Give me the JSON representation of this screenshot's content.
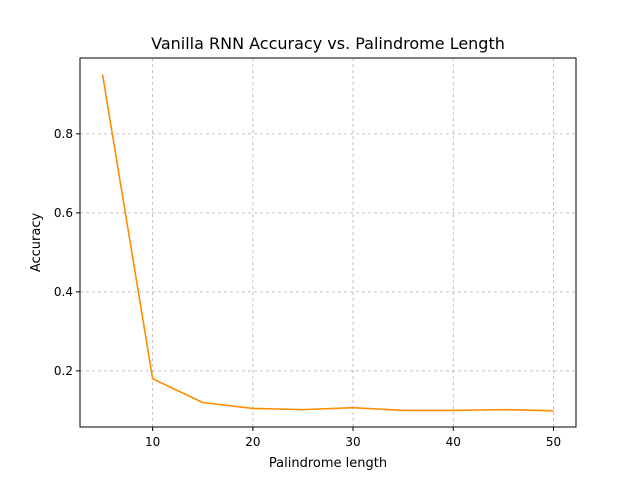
{
  "chart_data": {
    "type": "line",
    "title": "Vanilla RNN Accuracy vs. Palindrome Length",
    "xlabel": "Palindrome length",
    "ylabel": "Accuracy",
    "xlim": [
      2.75,
      52.25
    ],
    "ylim": [
      0.058,
      0.992
    ],
    "xticks": [
      10,
      20,
      30,
      40,
      50
    ],
    "yticks": [
      0.2,
      0.4,
      0.6,
      0.8
    ],
    "xtick_labels": [
      "10",
      "20",
      "30",
      "40",
      "50"
    ],
    "ytick_labels": [
      "0.2",
      "0.4",
      "0.6",
      "0.8"
    ],
    "grid": true,
    "series": [
      {
        "color": "#ff8c00",
        "x": [
          5,
          10,
          15,
          20,
          25,
          30,
          35,
          40,
          45,
          50
        ],
        "y": [
          0.95,
          0.18,
          0.12,
          0.105,
          0.102,
          0.107,
          0.1,
          0.1,
          0.102,
          0.099
        ]
      }
    ]
  }
}
